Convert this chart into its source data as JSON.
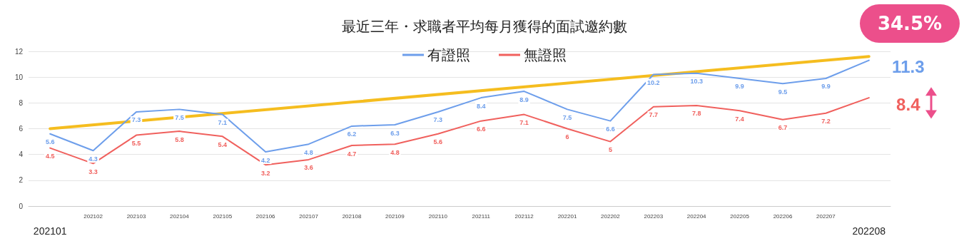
{
  "chart_data": {
    "type": "line",
    "title": "最近三年・求職者平均每月獲得的面試邀約數",
    "categories": [
      "202101",
      "202102",
      "202103",
      "202104",
      "202105",
      "202106",
      "202107",
      "202108",
      "202109",
      "202110",
      "202111",
      "202112",
      "202201",
      "202202",
      "202203",
      "202204",
      "202205",
      "202206",
      "202207",
      "202208"
    ],
    "series": [
      {
        "name": "有證照",
        "color": "#6d9eeb",
        "values": [
          5.6,
          4.3,
          7.3,
          7.5,
          7.1,
          4.2,
          4.8,
          6.2,
          6.3,
          7.3,
          8.4,
          8.9,
          7.5,
          6.6,
          10.2,
          10.3,
          9.9,
          9.5,
          9.9,
          11.3
        ],
        "value_labels": [
          "5.6",
          "4.3",
          "7.3",
          "7.5",
          "7.1",
          "4.2",
          "4.8",
          "6.2",
          "6.3",
          "7.3",
          "8.4",
          "8.9",
          "7.5",
          "6.6",
          "10.2",
          "10.3",
          "9.9",
          "9.5",
          "9.9",
          "11.3"
        ]
      },
      {
        "name": "無證照",
        "color": "#f0605d",
        "values": [
          4.5,
          3.3,
          5.5,
          5.8,
          5.4,
          3.2,
          3.6,
          4.7,
          4.8,
          5.6,
          6.6,
          7.1,
          6,
          5,
          7.7,
          7.8,
          7.4,
          6.7,
          7.2,
          8.4
        ],
        "value_labels": [
          "4.5",
          "3.3",
          "5.5",
          "5.8",
          "5.4",
          "3.2",
          "3.6",
          "4.7",
          "4.8",
          "5.6",
          "6.6",
          "7.1",
          "6",
          "5",
          "7.7",
          "7.8",
          "7.4",
          "6.7",
          "7.2",
          "8.4"
        ]
      },
      {
        "color": "#f5bd1f",
        "values": [
          6,
          null,
          null,
          null,
          null,
          null,
          null,
          null,
          null,
          null,
          null,
          null,
          null,
          null,
          null,
          null,
          null,
          null,
          null,
          11.6
        ]
      }
    ],
    "ylim": [
      0,
      12
    ],
    "yticks": [
      0,
      2,
      4,
      6,
      8,
      10,
      12
    ],
    "grid": "y",
    "legend": "top",
    "marker": "none",
    "line_style": "solid",
    "annotations": [
      "34.5%"
    ]
  }
}
